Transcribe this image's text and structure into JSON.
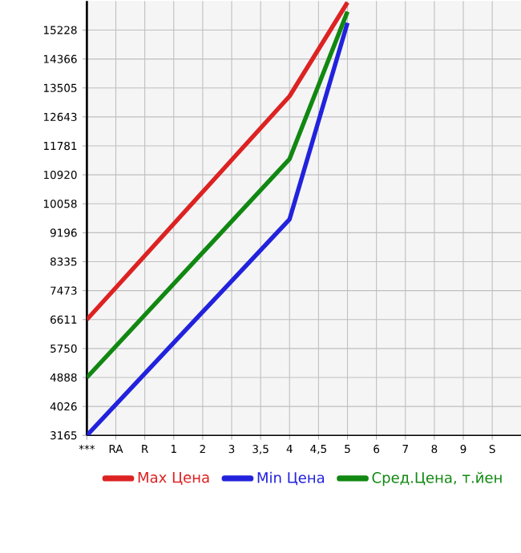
{
  "chart_data": {
    "type": "line",
    "categories": [
      "***",
      "RA",
      "R",
      "1",
      "2",
      "3",
      "3,5",
      "4",
      "4,5",
      "5",
      "6",
      "7",
      "8",
      "9",
      "S"
    ],
    "series": [
      {
        "name": "Max Цена",
        "color": "#dd2222",
        "values": [
          6611,
          null,
          null,
          null,
          null,
          null,
          null,
          13260,
          null,
          16050,
          null,
          null,
          null,
          null,
          null
        ]
      },
      {
        "name": "Min Цена",
        "color": "#2222dd",
        "values": [
          3165,
          null,
          null,
          null,
          null,
          null,
          null,
          9597,
          null,
          15443,
          null,
          null,
          null,
          null,
          null
        ]
      },
      {
        "name": "Сред.Цена, т.йен",
        "color": "#118811",
        "values": [
          4888,
          null,
          null,
          null,
          null,
          null,
          null,
          11393,
          null,
          15775,
          null,
          null,
          null,
          null,
          null
        ]
      }
    ],
    "ylim": [
      3165,
      16090
    ],
    "yticks": [
      3165,
      4026,
      4888,
      5750,
      6611,
      7473,
      8335,
      9196,
      10058,
      10920,
      11781,
      12643,
      13505,
      14366,
      15228
    ],
    "grid": true,
    "legend": "bottom",
    "marker": "none",
    "line_style": "solid"
  }
}
